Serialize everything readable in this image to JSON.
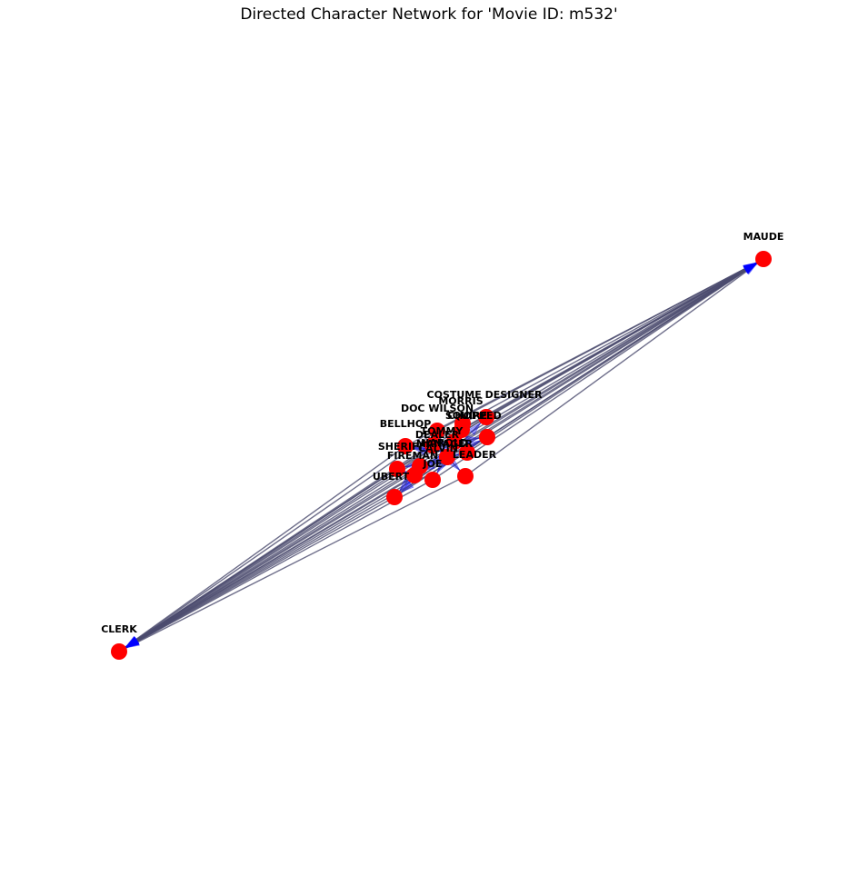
{
  "title": "Directed Character Network for 'Movie ID: m532'",
  "colors": {
    "node": "#ff0000",
    "edge": "#4b4b6e",
    "arrow": "#0000ff",
    "label": "#000000"
  },
  "nodes": [
    {
      "id": "MAUDE",
      "label": "MAUDE"
    },
    {
      "id": "CLERK",
      "label": "CLERK"
    },
    {
      "id": "COSTUME DESIGNER",
      "label": "COSTUME DESIGNER"
    },
    {
      "id": "MORRIS",
      "label": "MORRIS"
    },
    {
      "id": "DOC WILSON",
      "label": "DOC WILSON"
    },
    {
      "id": "SQUIRE",
      "label": "SQUIRE"
    },
    {
      "id": "CHOPPED",
      "label": "CHOPPED"
    },
    {
      "id": "BELLHOP",
      "label": "BELLHOP"
    },
    {
      "id": "TOMMY",
      "label": "TOMMY"
    },
    {
      "id": "DEALER",
      "label": "DEALER"
    },
    {
      "id": "MANAGER",
      "label": "MANAGER"
    },
    {
      "id": "SHERIFF",
      "label": "SHERIFF"
    },
    {
      "id": "CALVIN",
      "label": "CALVIN"
    },
    {
      "id": "FIREMAN",
      "label": "FIREMAN"
    },
    {
      "id": "LEADER",
      "label": "LEADER"
    },
    {
      "id": "UBERT",
      "label": "UBERT"
    },
    {
      "id": "JOE",
      "label": "JOE"
    },
    {
      "id": "HAROLD",
      "label": "HAROLD"
    }
  ],
  "edges": [
    [
      "COSTUME DESIGNER",
      "MAUDE"
    ],
    [
      "MORRIS",
      "MAUDE"
    ],
    [
      "DOC WILSON",
      "MAUDE"
    ],
    [
      "SQUIRE",
      "MAUDE"
    ],
    [
      "CHOPPED",
      "MAUDE"
    ],
    [
      "BELLHOP",
      "MAUDE"
    ],
    [
      "TOMMY",
      "MAUDE"
    ],
    [
      "DEALER",
      "MAUDE"
    ],
    [
      "MANAGER",
      "MAUDE"
    ],
    [
      "SHERIFF",
      "MAUDE"
    ],
    [
      "CALVIN",
      "MAUDE"
    ],
    [
      "FIREMAN",
      "MAUDE"
    ],
    [
      "LEADER",
      "MAUDE"
    ],
    [
      "UBERT",
      "MAUDE"
    ],
    [
      "JOE",
      "MAUDE"
    ],
    [
      "HAROLD",
      "MAUDE"
    ],
    [
      "COSTUME DESIGNER",
      "CLERK"
    ],
    [
      "MORRIS",
      "CLERK"
    ],
    [
      "DOC WILSON",
      "CLERK"
    ],
    [
      "SQUIRE",
      "CLERK"
    ],
    [
      "CHOPPED",
      "CLERK"
    ],
    [
      "BELLHOP",
      "CLERK"
    ],
    [
      "TOMMY",
      "CLERK"
    ],
    [
      "DEALER",
      "CLERK"
    ],
    [
      "MANAGER",
      "CLERK"
    ],
    [
      "SHERIFF",
      "CLERK"
    ],
    [
      "CALVIN",
      "CLERK"
    ],
    [
      "FIREMAN",
      "CLERK"
    ],
    [
      "LEADER",
      "CLERK"
    ],
    [
      "UBERT",
      "CLERK"
    ],
    [
      "JOE",
      "CLERK"
    ],
    [
      "HAROLD",
      "CLERK"
    ],
    [
      "MAUDE",
      "CLERK"
    ],
    [
      "HAROLD",
      "COSTUME DESIGNER"
    ],
    [
      "HAROLD",
      "MORRIS"
    ],
    [
      "HAROLD",
      "DOC WILSON"
    ],
    [
      "HAROLD",
      "SQUIRE"
    ],
    [
      "HAROLD",
      "CHOPPED"
    ],
    [
      "HAROLD",
      "BELLHOP"
    ],
    [
      "HAROLD",
      "TOMMY"
    ],
    [
      "HAROLD",
      "DEALER"
    ],
    [
      "HAROLD",
      "MANAGER"
    ],
    [
      "HAROLD",
      "SHERIFF"
    ],
    [
      "HAROLD",
      "CALVIN"
    ],
    [
      "HAROLD",
      "FIREMAN"
    ],
    [
      "HAROLD",
      "LEADER"
    ],
    [
      "HAROLD",
      "UBERT"
    ],
    [
      "HAROLD",
      "JOE"
    ],
    [
      "MANAGER",
      "BELLHOP"
    ],
    [
      "SHERIFF",
      "FIREMAN"
    ],
    [
      "CALVIN",
      "UBERT"
    ],
    [
      "TOMMY",
      "CHOPPED"
    ]
  ]
}
